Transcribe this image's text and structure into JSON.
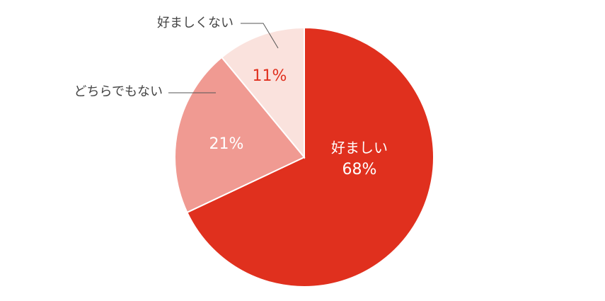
{
  "chart_data": {
    "type": "pie",
    "categories": [
      "好ましい",
      "どちらでもない",
      "好ましくない"
    ],
    "values": [
      68,
      21,
      11
    ],
    "value_labels": [
      "68%",
      "21%",
      "11%"
    ],
    "colors": [
      "#e0301e",
      "#f09a92",
      "#fae2dd"
    ]
  }
}
